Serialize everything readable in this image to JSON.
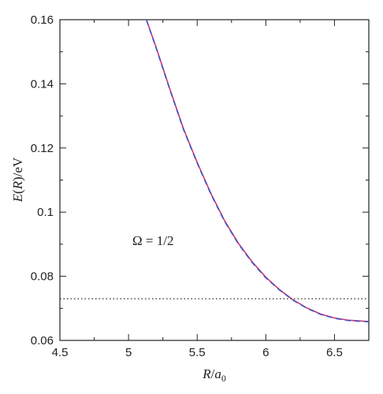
{
  "chart_data": {
    "type": "line",
    "xlabel": "R/a₀",
    "ylabel": "E(R)/eV",
    "xlim": [
      4.5,
      6.75
    ],
    "ylim": [
      0.06,
      0.16
    ],
    "xticks": [
      4.5,
      5,
      5.5,
      6,
      6.5
    ],
    "xtick_labels": [
      "4.5",
      "5",
      "5.5",
      "6",
      "6.5"
    ],
    "yticks": [
      0.06,
      0.08,
      0.1,
      0.12,
      0.14,
      0.16
    ],
    "ytick_labels": [
      "0.06",
      "0.08",
      "0.1",
      "0.12",
      "0.14",
      "0.16"
    ],
    "grid": false,
    "annotation": "Ω = 1/2",
    "series": [
      {
        "style": "solid",
        "color": "#d6306b",
        "x": [
          5.13,
          5.2,
          5.3,
          5.4,
          5.5,
          5.6,
          5.7,
          5.8,
          5.9,
          6.0,
          6.1,
          6.2,
          6.3,
          6.4,
          6.5,
          6.6,
          6.75
        ],
        "y": [
          0.16,
          0.1515,
          0.1385,
          0.126,
          0.1155,
          0.1058,
          0.0973,
          0.0903,
          0.0845,
          0.0797,
          0.0758,
          0.0726,
          0.0701,
          0.0682,
          0.067,
          0.0663,
          0.0659
        ]
      },
      {
        "style": "dashed",
        "color": "#3a55c8",
        "x": [
          5.13,
          5.2,
          5.3,
          5.4,
          5.5,
          5.6,
          5.7,
          5.8,
          5.9,
          6.0,
          6.1,
          6.2,
          6.3,
          6.4,
          6.5,
          6.6,
          6.75
        ],
        "y": [
          0.16,
          0.1513,
          0.1383,
          0.1258,
          0.1153,
          0.1056,
          0.0971,
          0.0901,
          0.0843,
          0.0795,
          0.0757,
          0.0725,
          0.07,
          0.0681,
          0.0669,
          0.0662,
          0.0658
        ]
      },
      {
        "style": "dotted",
        "color": "#222222",
        "x": [
          4.5,
          6.75
        ],
        "y": [
          0.073,
          0.073
        ]
      }
    ]
  }
}
